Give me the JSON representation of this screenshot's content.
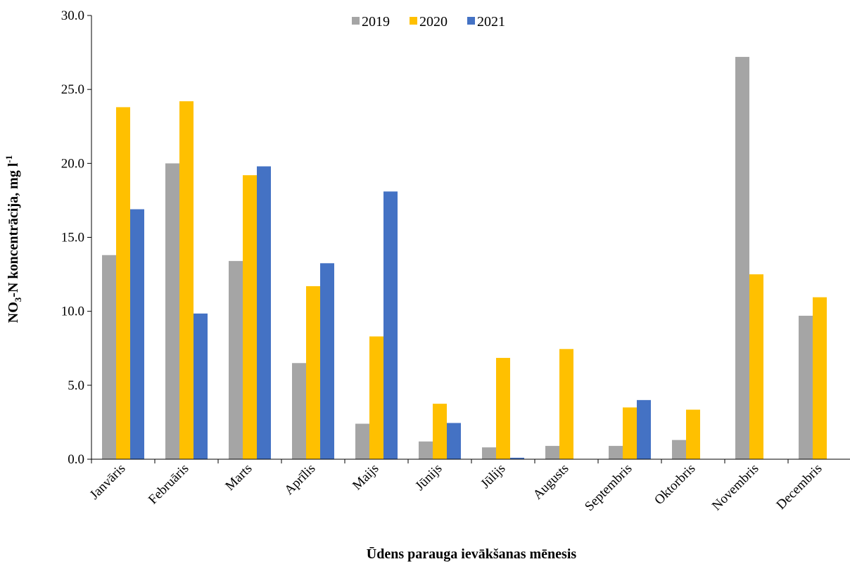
{
  "chart_data": {
    "type": "bar",
    "title": "",
    "xlabel": "Ūdens parauga ievākšanas mēnesis",
    "ylabel": {
      "main": "NO",
      "sub": "3",
      "middle": "-N koncentrācija,  mg l",
      "sup": "-1"
    },
    "ylim": [
      0,
      30
    ],
    "yticks": [
      "0.0",
      "5.0",
      "10.0",
      "15.0",
      "20.0",
      "25.0",
      "30.0"
    ],
    "grid": false,
    "legend_position": "top-center",
    "categories": [
      "Janvāris",
      "Februāris",
      "Marts",
      "Aprīlis",
      "Maijs",
      "Jūnijs",
      "Jūlijs",
      "Augusts",
      "Septembris",
      "Oktorbris",
      "Novembris",
      "Decembris"
    ],
    "series": [
      {
        "name": "2019",
        "color": "#A5A5A5",
        "values": [
          13.8,
          20.0,
          13.4,
          6.5,
          2.4,
          1.2,
          0.8,
          0.9,
          0.9,
          1.3,
          27.2,
          9.7
        ]
      },
      {
        "name": "2020",
        "color": "#FFC000",
        "values": [
          23.8,
          24.2,
          19.2,
          11.7,
          8.3,
          3.75,
          6.85,
          7.45,
          3.5,
          3.35,
          12.5,
          10.95
        ]
      },
      {
        "name": "2021",
        "color": "#4472C4",
        "values": [
          16.9,
          9.85,
          19.8,
          13.25,
          18.1,
          2.45,
          0.1,
          null,
          4.0,
          null,
          null,
          null
        ]
      }
    ]
  }
}
